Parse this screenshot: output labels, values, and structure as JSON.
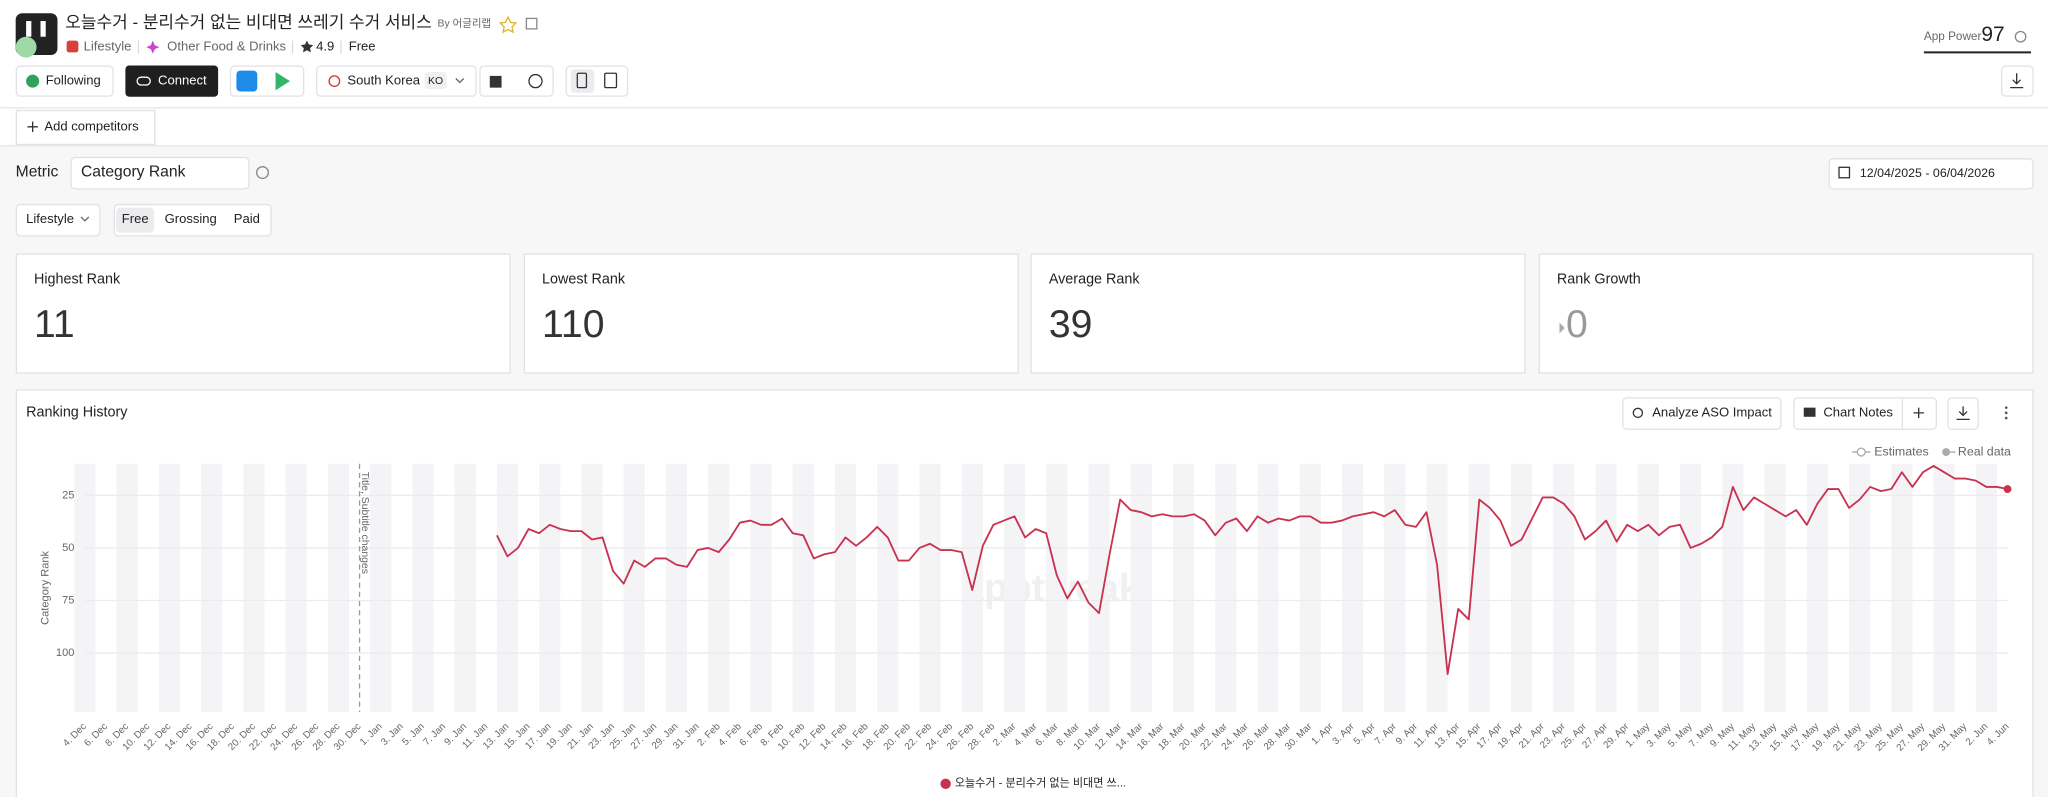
{
  "header": {
    "title": "오늘수거 - 분리수거 없는 비대면 쓰레기 수거 서비스",
    "by": "By 어글리랩",
    "category": "Lifestyle",
    "subcategory": "Other Food & Drinks",
    "rating": 4.9,
    "price": "Free",
    "app_power_label": "App Power",
    "app_power": 97
  },
  "toolbar": {
    "following": "Following",
    "connect": "Connect",
    "country": "South Korea",
    "language": "KO",
    "add_competitors": "Add competitors"
  },
  "filters": {
    "metric_label": "Metric",
    "metric": "Category Rank",
    "date_range": "12/04/2025 - 06/04/2026",
    "category": "Lifestyle",
    "tabs": [
      "Free",
      "Grossing",
      "Paid"
    ]
  },
  "cards": [
    {
      "label": "Highest Rank",
      "value": 11
    },
    {
      "label": "Lowest Rank",
      "value": 110
    },
    {
      "label": "Average Rank",
      "value": 39
    },
    {
      "label": "Rank Growth",
      "value": 0
    }
  ],
  "chart_data": {
    "type": "line",
    "title": "Ranking History",
    "y_label": "Category Rank",
    "chart_toolbar": [
      "Analyze ASO Impact",
      "Chart Notes"
    ],
    "legend_notes": [
      "Estimates",
      "Real data"
    ],
    "watermark": "apptweak",
    "annotations": [
      {
        "x": "30. Dec",
        "label": "Title, Subtitle changes"
      }
    ],
    "categories": [
      "4. Dec",
      null,
      "6. Dec",
      null,
      "8. Dec",
      null,
      "10. Dec",
      null,
      "12. Dec",
      null,
      "14. Dec",
      null,
      "16. Dec",
      null,
      "18. Dec",
      null,
      "20. Dec",
      null,
      "22. Dec",
      null,
      "24. Dec",
      null,
      "26. Dec",
      null,
      "28. Dec",
      null,
      "30. Dec",
      null,
      "1. Jan",
      null,
      "3. Jan",
      null,
      "5. Jan",
      null,
      "7. Jan",
      null,
      "9. Jan",
      null,
      "11. Jan",
      null,
      "13. Jan",
      null,
      "15. Jan",
      null,
      "17. Jan",
      null,
      "19. Jan",
      null,
      "21. Jan",
      null,
      "23. Jan",
      null,
      "25. Jan",
      null,
      "27. Jan",
      null,
      "29. Jan",
      null,
      "31. Jan",
      null,
      "2. Feb",
      null,
      "4. Feb",
      null,
      "6. Feb",
      null,
      "8. Feb",
      null,
      "10. Feb",
      null,
      "12. Feb",
      null,
      "14. Feb",
      null,
      "16. Feb",
      null,
      "18. Feb",
      null,
      "20. Feb",
      null,
      "22. Feb",
      null,
      "24. Feb",
      null,
      "26. Feb",
      null,
      "28. Feb",
      null,
      "2. Mar",
      null,
      "4. Mar",
      null,
      "6. Mar",
      null,
      "8. Mar",
      null,
      "10. Mar",
      null,
      "12. Mar",
      null,
      "14. Mar",
      null,
      "16. Mar",
      null,
      "18. Mar",
      null,
      "20. Mar",
      null,
      "22. Mar",
      null,
      "24. Mar",
      null,
      "26. Mar",
      null,
      "28. Mar",
      null,
      "30. Mar",
      null,
      "1. Apr",
      null,
      "3. Apr",
      null,
      "5. Apr",
      null,
      "7. Apr",
      null,
      "9. Apr",
      null,
      "11. Apr",
      null,
      "13. Apr",
      null,
      "15. Apr",
      null,
      "17. Apr",
      null,
      "19. Apr",
      null,
      "21. Apr",
      null,
      "23. Apr",
      null,
      "25. Apr",
      null,
      "27. Apr",
      null,
      "29. Apr",
      null,
      "1. May",
      null,
      "3. May",
      null,
      "5. May",
      null,
      "7. May",
      null,
      "9. May",
      null,
      "11. May",
      null,
      "13. May",
      null,
      "15. May",
      null,
      "17. May",
      null,
      "19. May",
      null,
      "21. May",
      null,
      "23. May",
      null,
      "25. May",
      null,
      "27. May",
      null,
      "29. May",
      null,
      "31. May",
      null,
      "2. Jun",
      null,
      "4. Jun"
    ],
    "series": [
      {
        "name": "오늘수거 - 분리수거 없는 비대면 쓰...",
        "color": "#c8324f",
        "values": [
          null,
          null,
          null,
          null,
          null,
          null,
          null,
          null,
          null,
          null,
          null,
          null,
          null,
          null,
          null,
          null,
          null,
          null,
          null,
          null,
          null,
          null,
          null,
          null,
          null,
          null,
          null,
          null,
          null,
          null,
          null,
          null,
          null,
          null,
          null,
          null,
          null,
          null,
          null,
          44,
          54,
          50,
          41,
          43,
          39,
          41,
          42,
          42,
          46,
          45,
          61,
          67,
          56,
          59,
          55,
          55,
          58,
          59,
          51,
          50,
          52,
          46,
          38,
          37,
          39,
          39,
          36,
          43,
          44,
          55,
          53,
          52,
          45,
          49,
          45,
          40,
          45,
          56,
          56,
          50,
          48,
          51,
          51,
          52,
          70,
          49,
          39,
          37,
          35,
          45,
          41,
          43,
          63,
          74,
          66,
          76,
          81,
          53,
          27,
          32,
          33,
          35,
          34,
          35,
          35,
          34,
          37,
          44,
          38,
          36,
          42,
          35,
          38,
          36,
          37,
          35,
          35,
          38,
          38,
          37,
          35,
          34,
          33,
          35,
          32,
          39,
          40,
          33,
          58,
          110,
          79,
          84,
          27,
          31,
          37,
          49,
          46,
          36,
          26,
          26,
          29,
          35,
          46,
          42,
          37,
          47,
          39,
          42,
          39,
          44,
          40,
          39,
          50,
          48,
          45,
          40,
          21,
          32,
          26,
          29,
          32,
          35,
          32,
          39,
          29,
          22,
          22,
          31,
          27,
          21,
          23,
          22,
          14,
          21,
          14,
          11,
          14,
          17,
          17,
          18,
          21,
          21,
          22
        ]
      }
    ],
    "ylim": [
      128,
      10
    ],
    "yticks": [
      25,
      50,
      75,
      100
    ],
    "grid": true
  }
}
